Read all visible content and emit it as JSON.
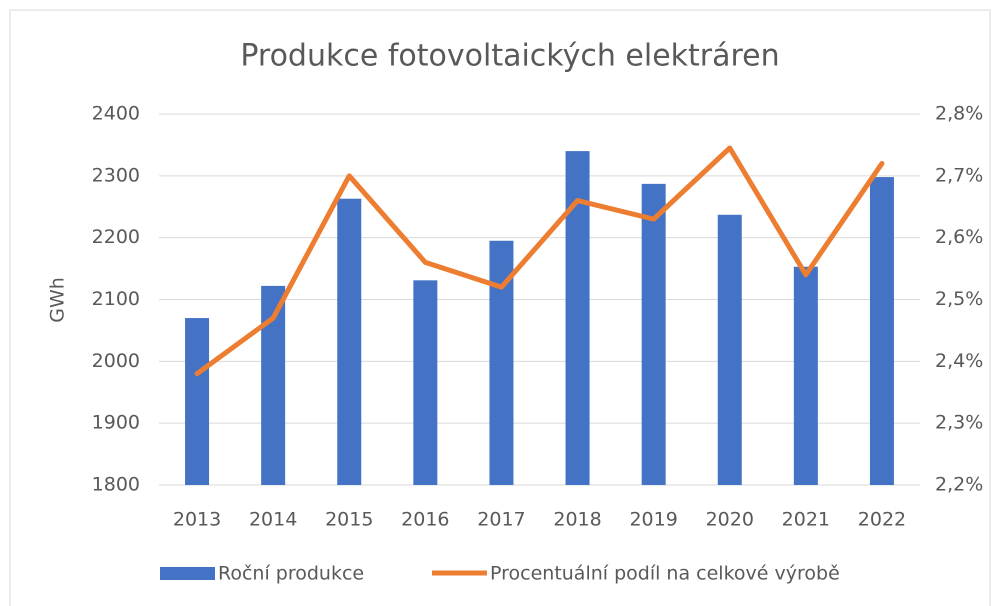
{
  "chart_data": {
    "type": "bar_line",
    "title": "Produkce fotovoltaických elektráren",
    "y_label": "GWh",
    "categories": [
      "2013",
      "2014",
      "2015",
      "2016",
      "2017",
      "2018",
      "2019",
      "2020",
      "2021",
      "2022"
    ],
    "series": [
      {
        "name": "Roční produkce",
        "type": "bar",
        "color": "#4472c4",
        "axis": "y",
        "values": [
          2070,
          2122,
          2263,
          2131,
          2195,
          2340,
          2287,
          2237,
          2153,
          2298
        ]
      },
      {
        "name": "Procentuální podíl na celkové výrobě",
        "type": "line",
        "color": "#ed7d31",
        "axis": "y2",
        "values": [
          2.38,
          2.47,
          2.7,
          2.56,
          2.52,
          2.66,
          2.63,
          2.745,
          2.54,
          2.72
        ]
      }
    ],
    "ylim": [
      1800,
      2400
    ],
    "yticks": [
      1800,
      1900,
      2000,
      2100,
      2200,
      2300,
      2400
    ],
    "y2lim": [
      2.2,
      2.8
    ],
    "y2ticks": [
      {
        "value": 2.2,
        "label": "2,2%"
      },
      {
        "value": 2.3,
        "label": "2,3%"
      },
      {
        "value": 2.4,
        "label": "2,4%"
      },
      {
        "value": 2.5,
        "label": "2,5%"
      },
      {
        "value": 2.6,
        "label": "2,6%"
      },
      {
        "value": 2.7,
        "label": "2,7%"
      },
      {
        "value": 2.8,
        "label": "2,8%"
      }
    ],
    "grid": true,
    "legend": "bottom"
  }
}
